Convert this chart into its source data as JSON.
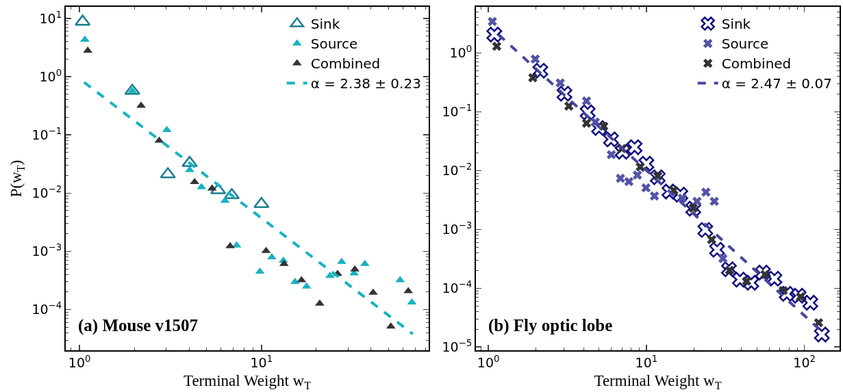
{
  "chart_data": [
    {
      "type": "scatter",
      "xlabel": "Terminal Weight w$_{T}$",
      "ylabel": "P(w$_{T}$)",
      "annotations": [
        "(a) Mouse v1507"
      ],
      "log": "xy",
      "legend": "top right",
      "xlim": [
        0.84,
        83
      ],
      "ylim": [
        2e-05,
        15.8
      ],
      "xticks": [
        {
          "value": 1,
          "label": "10$^{0}$"
        },
        {
          "value": 10,
          "label": "10$^{1}$"
        }
      ],
      "yticks": [
        {
          "value": 0.0001,
          "label": "10$^{−4}$"
        },
        {
          "value": 0.001,
          "label": "10$^{−3}$"
        },
        {
          "value": 0.01,
          "label": "10$^{−2}$"
        },
        {
          "value": 0.1,
          "label": "10$^{−1}$"
        },
        {
          "value": 1,
          "label": "10$^{0}$"
        },
        {
          "value": 10,
          "label": "10$^{1}$"
        }
      ],
      "series": [
        {
          "name": "Sink",
          "color": "#1a7f8e",
          "marker": "triangle",
          "x": [
            1.04,
            1.95,
            3.06,
            4.03,
            5.78,
            6.87,
            10
          ],
          "values": [
            8.8,
            0.57,
            0.021,
            0.033,
            0.0112,
            0.0092,
            0.0065
          ]
        },
        {
          "name": "Source",
          "color": "#17b2c0",
          "marker": "triangle",
          "x": [
            1.07,
            1.95,
            3.02,
            4.03,
            4.68,
            6.3,
            7.3,
            9.8,
            11.4,
            13.2,
            15.3,
            17.7,
            23.8,
            27.6,
            32.3,
            37.0,
            57.8,
            67.1
          ],
          "values": [
            4.3,
            0.57,
            0.121,
            0.025,
            0.0127,
            0.0074,
            0.00126,
            0.00045,
            0.00079,
            0.00069,
            0.0003,
            0.00025,
            0.00038,
            0.00066,
            0.00042,
            0.00061,
            0.00032,
            0.000133
          ]
        },
        {
          "name": "Combined",
          "color": "#333333",
          "marker": "triangle",
          "x": [
            1.11,
            2.18,
            2.74,
            4.29,
            5.35,
            6.73,
            10.6,
            13.3,
            16.6,
            20.9,
            26.2,
            32.6,
            41.1,
            51.4,
            64.1
          ],
          "values": [
            2.8,
            0.318,
            0.08,
            0.0155,
            0.012,
            0.00123,
            0.00102,
            0.00061,
            0.00032,
            0.000127,
            0.00041,
            0.00049,
            0.000195,
            5.13e-05,
            0.000207
          ]
        },
        {
          "name": "α = 2.38 ± 0.23",
          "color": "#17b2c0",
          "type": "line",
          "marker": "none",
          "line_style": "dashed",
          "x": [
            1.06,
            68
          ],
          "values": [
            0.8,
            3.8e-05
          ]
        }
      ]
    },
    {
      "type": "scatter",
      "xlabel": "Terminal Weight w$_{T}$",
      "annotations": [
        "(b) Fly optic lobe"
      ],
      "log": "xy",
      "legend": "top right",
      "xlim": [
        0.834,
        167
      ],
      "ylim": [
        8.8e-06,
        6.1
      ],
      "xticks": [
        {
          "value": 1,
          "label": "10$^{0}$"
        },
        {
          "value": 10,
          "label": "10$^{1}$"
        },
        {
          "value": 100,
          "label": "10$^{2}$"
        }
      ],
      "yticks": [
        {
          "value": 1e-05,
          "label": "10$^{−5}$"
        },
        {
          "value": 0.0001,
          "label": "10$^{−4}$"
        },
        {
          "value": 0.001,
          "label": "10$^{−3}$"
        },
        {
          "value": 0.01,
          "label": "10$^{−2}$"
        },
        {
          "value": 0.1,
          "label": "10$^{−1}$"
        },
        {
          "value": 1,
          "label": "10$^{0}$"
        }
      ],
      "series": [
        {
          "name": "Sink",
          "color": "#0c0c80",
          "marker": "cross",
          "x": [
            1.09,
            2.13,
            3.03,
            4.25,
            5.02,
            5.97,
            7.08,
            8.42,
            10,
            11.8,
            14.0,
            16.4,
            19.8,
            23.6,
            28.0,
            33.3,
            39.1,
            46.1,
            54.7,
            64.6,
            77.3,
            91.9,
            109,
            129
          ],
          "values": [
            2.06,
            0.5,
            0.203,
            0.098,
            0.053,
            0.034,
            0.021,
            0.025,
            0.0131,
            0.0077,
            0.0044,
            0.0039,
            0.00225,
            0.00098,
            0.00045,
            0.00021,
            0.00014,
            0.000124,
            0.000184,
            0.000145,
            8.03e-05,
            7.45e-05,
            5.66e-05,
            1.63e-05
          ]
        },
        {
          "name": "Source",
          "color": "#5353a8",
          "marker": "cross",
          "x": [
            1.06,
            1.98,
            2.85,
            4.18,
            4.75,
            6.0,
            6.85,
            7.75,
            8.77,
            9.94,
            11.25,
            16.9,
            20.9,
            23.8,
            26.9,
            30.5
          ],
          "values": [
            3.44,
            0.79,
            0.31,
            0.153,
            0.067,
            0.0187,
            0.0074,
            0.0065,
            0.0084,
            0.0051,
            0.0037,
            0.0034,
            0.003,
            0.0043,
            0.003,
            0.00032
          ]
        },
        {
          "name": "Combined",
          "color": "#333333",
          "marker": "cross",
          "x": [
            1.13,
            1.91,
            3.23,
            4.18,
            5.37,
            7.0,
            9.15,
            11.8,
            14.9,
            19.8,
            25.9,
            33.6,
            43.1,
            56.3,
            73.4,
            94.4,
            123
          ],
          "values": [
            1.3,
            0.38,
            0.125,
            0.064,
            0.057,
            0.0236,
            0.0116,
            0.0081,
            0.0046,
            0.0023,
            0.00067,
            0.000202,
            0.000132,
            0.000171,
            9.12e-05,
            7.13e-05,
            2.59e-05
          ]
        },
        {
          "name": "α = 2.47 ± 0.07",
          "color": "#4545a0",
          "type": "line",
          "marker": "none",
          "line_style": "dashed",
          "x": [
            1.16,
            127
          ],
          "values": [
            2.06,
            1.9e-05
          ]
        }
      ]
    }
  ]
}
